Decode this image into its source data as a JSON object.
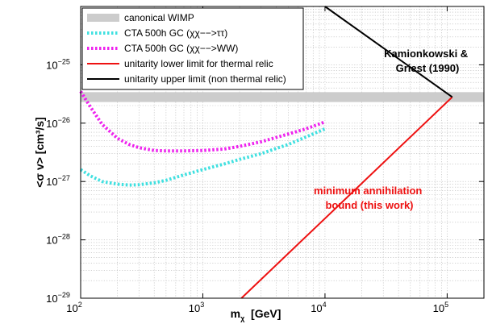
{
  "chart_data": {
    "type": "line",
    "xscale": "log",
    "yscale": "log",
    "xlim": [
      100,
      200000
    ],
    "ylim": [
      1e-29,
      1e-24
    ],
    "grid": true,
    "legend_position": "top-left",
    "x_ticks": [
      {
        "base": "10",
        "exp": "2"
      },
      {
        "base": "10",
        "exp": "3"
      },
      {
        "base": "10",
        "exp": "4"
      },
      {
        "base": "10",
        "exp": "5"
      }
    ],
    "y_ticks": [
      {
        "base": "10",
        "exp": "−25"
      },
      {
        "base": "10",
        "exp": "−26"
      },
      {
        "base": "10",
        "exp": "−27"
      },
      {
        "base": "10",
        "exp": "−28"
      },
      {
        "base": "10",
        "exp": "−29"
      }
    ],
    "xlabel": {
      "main": "m",
      "sub": "χ",
      "unit": "  [GeV]"
    },
    "ylabel": "<σ v>  [cm³/s]",
    "series": [
      {
        "name": "canonical WIMP",
        "kind": "band",
        "color": "#cccccc",
        "y_low": 2.3e-26,
        "y_high": 3.4e-26
      },
      {
        "name": "CTA 500h GC (χχ−−>ττ)",
        "kind": "dotted",
        "color": "#40e0e0",
        "x": [
          100,
          120,
          150,
          200,
          250,
          300,
          400,
          500,
          700,
          1000,
          1500,
          2000,
          3000,
          4000,
          5000,
          7000,
          10000
        ],
        "y": [
          1.6e-27,
          1.25e-27,
          1e-27,
          9e-28,
          8.7e-28,
          8.8e-28,
          9.5e-28,
          1.05e-27,
          1.3e-27,
          1.6e-27,
          2e-27,
          2.4e-27,
          3e-27,
          3.7e-27,
          4.3e-27,
          5.8e-27,
          8e-27
        ]
      },
      {
        "name": "CTA 500h GC (χχ−−>WW)",
        "kind": "dotted",
        "color": "#ee22ee",
        "x": [
          100,
          120,
          150,
          200,
          250,
          300,
          400,
          500,
          700,
          1000,
          1500,
          2000,
          3000,
          4000,
          5000,
          7000,
          10000
        ],
        "y": [
          3.5e-26,
          1.9e-26,
          9.5e-27,
          5.5e-27,
          4.3e-27,
          3.8e-27,
          3.4e-27,
          3.35e-27,
          3.35e-27,
          3.4e-27,
          3.6e-27,
          4e-27,
          4.8e-27,
          5.7e-27,
          6.5e-27,
          8e-27,
          1.05e-26
        ]
      },
      {
        "name": "unitarity lower limit for thermal relic",
        "kind": "solid",
        "color": "#ee1111",
        "x": [
          2070,
          110000
        ],
        "y": [
          1e-29,
          2.8e-26
        ]
      },
      {
        "name": "unitarity upper limit (non thermal relic)",
        "kind": "solid",
        "color": "#000000",
        "x": [
          10000,
          110000
        ],
        "y": [
          3.5e-24,
          2.8e-26
        ]
      }
    ],
    "annotations": [
      {
        "lines": [
          "Kamionkowski &",
          "Griest  (1990)"
        ],
        "color": "#000000"
      },
      {
        "lines": [
          "minimum annihilation",
          "bound (this work)"
        ],
        "color": "#ee1111"
      }
    ]
  }
}
